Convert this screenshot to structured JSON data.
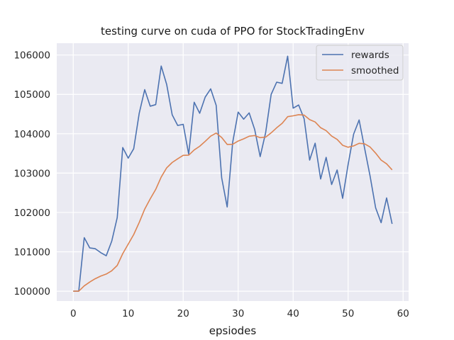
{
  "chart_data": {
    "type": "line",
    "title": "testing curve on cuda of PPO for StockTradingEnv",
    "xlabel": "epsiodes",
    "ylabel": "",
    "xlim": [
      -3,
      61
    ],
    "ylim": [
      99750,
      106300
    ],
    "xticks": [
      0,
      10,
      20,
      30,
      40,
      50,
      60
    ],
    "yticks": [
      100000,
      101000,
      102000,
      103000,
      104000,
      105000,
      106000
    ],
    "grid": true,
    "legend_position": "top-right",
    "x": [
      0,
      1,
      2,
      3,
      4,
      5,
      6,
      7,
      8,
      9,
      10,
      11,
      12,
      13,
      14,
      15,
      16,
      17,
      18,
      19,
      20,
      21,
      22,
      23,
      24,
      25,
      26,
      27,
      28,
      29,
      30,
      31,
      32,
      33,
      34,
      35,
      36,
      37,
      38,
      39,
      40,
      41,
      42,
      43,
      44,
      45,
      46,
      47,
      48,
      49,
      50,
      51,
      52,
      53,
      54,
      55,
      56,
      57,
      58
    ],
    "series": [
      {
        "name": "rewards",
        "color": "#4c72b0",
        "values": [
          100000,
          100000,
          101360,
          101100,
          101080,
          100980,
          100900,
          101270,
          101870,
          103650,
          103380,
          103620,
          104520,
          105120,
          104700,
          104740,
          105720,
          105250,
          104480,
          104210,
          104240,
          103480,
          104800,
          104520,
          104930,
          105140,
          104720,
          102880,
          102140,
          103780,
          104550,
          104370,
          104530,
          104110,
          103420,
          104030,
          105000,
          105310,
          105280,
          105970,
          104650,
          104730,
          104380,
          103330,
          103760,
          102850,
          103400,
          102710,
          103080,
          102360,
          103220,
          103990,
          104350,
          103630,
          102920,
          102120,
          101740,
          102370,
          101710
        ]
      },
      {
        "name": "smoothed",
        "color": "#dd8452",
        "values": [
          100000,
          100000,
          100136,
          100233,
          100317,
          100384,
          100436,
          100519,
          100654,
          100953,
          101196,
          101439,
          101747,
          102085,
          102346,
          102586,
          102900,
          103135,
          103270,
          103364,
          103452,
          103455,
          103589,
          103682,
          103807,
          103940,
          104018,
          103904,
          103728,
          103733,
          103815,
          103871,
          103937,
          103954,
          103901,
          103914,
          104023,
          104151,
          104264,
          104434,
          104456,
          104484,
          104474,
          104359,
          104299,
          104154,
          104079,
          103942,
          103856,
          103707,
          103658,
          103691,
          103757,
          103744,
          103662,
          103508,
          103331,
          103235,
          103083
        ]
      }
    ]
  }
}
